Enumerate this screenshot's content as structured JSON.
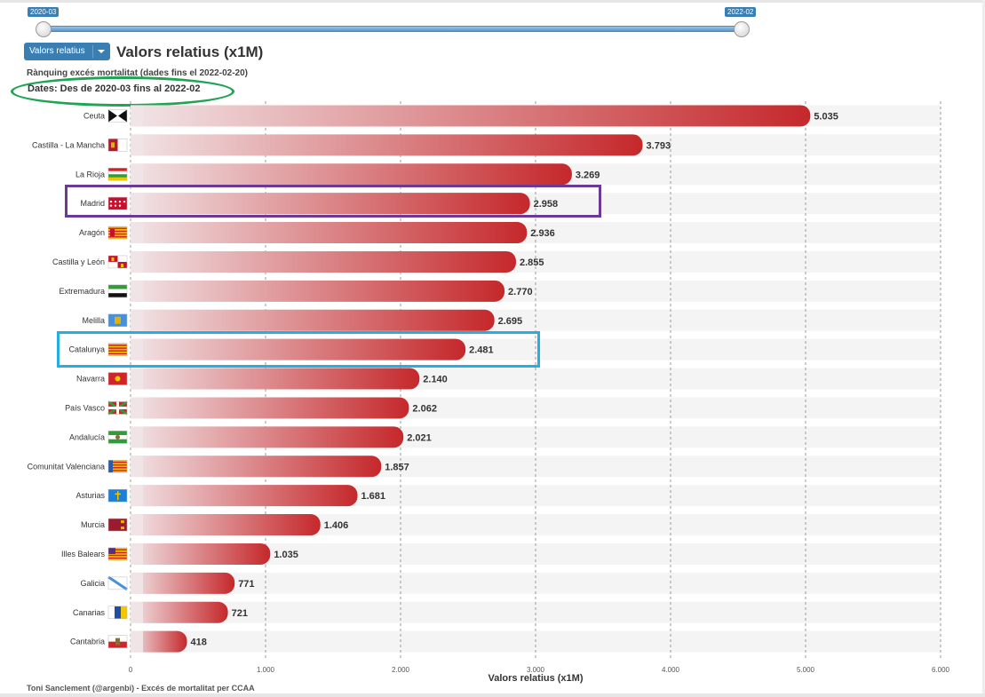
{
  "slider": {
    "start_label": "2020-03",
    "end_label": "2022-02"
  },
  "controls": {
    "metric_select_value": "Valors relatius"
  },
  "header": {
    "title": "Valors relatius (x1M)",
    "subtitle": "Rànquing excés mortalitat (dades fins el 2022-02-20)",
    "dates": "Dates: Des de 2020-03 fins al 2022-02"
  },
  "footer": {
    "credit": "Toni Sanclement (@argenbi) - Excés de mortalitat per CCAA"
  },
  "colors": {
    "bar_start": "#f1e4e6",
    "bar_end": "#c5282b",
    "row_band": "#f4f4f4",
    "highlight_green": "#1fa454",
    "highlight_purple": "#6b3a96",
    "highlight_cyan": "#25aee0",
    "accent_blue": "#3a7fb3"
  },
  "chart_data": {
    "type": "bar",
    "orientation": "horizontal",
    "title": "Valors relatius (x1M)",
    "xlabel": "Valors relatius (x1M)",
    "xlim": [
      0,
      6000
    ],
    "x_ticks": [
      0,
      1000,
      2000,
      3000,
      4000,
      5000,
      6000
    ],
    "x_tick_labels": [
      "0",
      "1.000",
      "2.000",
      "3.000",
      "4.000",
      "5.000",
      "6.000"
    ],
    "grid": true,
    "categories": [
      "Ceuta",
      "Castilla - La Mancha",
      "La Rioja",
      "Madrid",
      "Aragón",
      "Castilla y León",
      "Extremadura",
      "Melilla",
      "Catalunya",
      "Navarra",
      "País Vasco",
      "Andalucía",
      "Comunitat Valenciana",
      "Asturias",
      "Murcia",
      "Illes Balears",
      "Galicia",
      "Canarias",
      "Cantabria"
    ],
    "values": [
      5035,
      3793,
      3269,
      2958,
      2936,
      2855,
      2770,
      2695,
      2481,
      2140,
      2062,
      2021,
      1857,
      1681,
      1406,
      1035,
      771,
      721,
      418
    ],
    "value_labels": [
      "5.035",
      "3.793",
      "3.269",
      "2.958",
      "2.936",
      "2.855",
      "2.770",
      "2.695",
      "2.481",
      "2.140",
      "2.062",
      "2.021",
      "1.857",
      "1.681",
      "1.406",
      "1.035",
      "771",
      "721",
      "418"
    ],
    "flag_icons": [
      "ceuta-flag-icon",
      "castilla-la-mancha-flag-icon",
      "la-rioja-flag-icon",
      "madrid-flag-icon",
      "aragon-flag-icon",
      "castilla-y-leon-flag-icon",
      "extremadura-flag-icon",
      "melilla-flag-icon",
      "catalunya-flag-icon",
      "navarra-flag-icon",
      "pais-vasco-flag-icon",
      "andalucia-flag-icon",
      "comunitat-valenciana-flag-icon",
      "asturias-flag-icon",
      "murcia-flag-icon",
      "illes-balears-flag-icon",
      "galicia-flag-icon",
      "canarias-flag-icon",
      "cantabria-flag-icon"
    ]
  }
}
